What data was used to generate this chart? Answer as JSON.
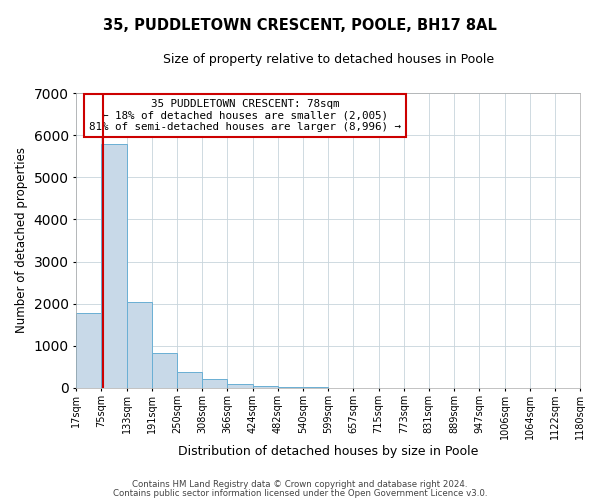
{
  "title": "35, PUDDLETOWN CRESCENT, POOLE, BH17 8AL",
  "subtitle": "Size of property relative to detached houses in Poole",
  "xlabel": "Distribution of detached houses by size in Poole",
  "ylabel": "Number of detached properties",
  "bar_values": [
    1780,
    5780,
    2050,
    820,
    370,
    220,
    100,
    55,
    30,
    10,
    5,
    0,
    0,
    0,
    0,
    0,
    0,
    0,
    0,
    0
  ],
  "bin_edges": [
    17,
    75,
    133,
    191,
    250,
    308,
    366,
    424,
    482,
    540,
    599,
    657,
    715,
    773,
    831,
    889,
    947,
    1006,
    1064,
    1122,
    1180
  ],
  "bar_labels": [
    "17sqm",
    "75sqm",
    "133sqm",
    "191sqm",
    "250sqm",
    "308sqm",
    "366sqm",
    "424sqm",
    "482sqm",
    "540sqm",
    "599sqm",
    "657sqm",
    "715sqm",
    "773sqm",
    "831sqm",
    "889sqm",
    "947sqm",
    "1006sqm",
    "1064sqm",
    "1122sqm",
    "1180sqm"
  ],
  "bar_color": "#c8d9e8",
  "bar_edge_color": "#6aafd4",
  "ylim": [
    0,
    7000
  ],
  "yticks": [
    0,
    1000,
    2000,
    3000,
    4000,
    5000,
    6000,
    7000
  ],
  "property_line_x": 78,
  "property_line_color": "#cc0000",
  "annotation_title": "35 PUDDLETOWN CRESCENT: 78sqm",
  "annotation_line1": "← 18% of detached houses are smaller (2,005)",
  "annotation_line2": "81% of semi-detached houses are larger (8,996) →",
  "annotation_box_color": "#cc0000",
  "footer1": "Contains HM Land Registry data © Crown copyright and database right 2024.",
  "footer2": "Contains public sector information licensed under the Open Government Licence v3.0.",
  "background_color": "#ffffff",
  "plot_background": "#ffffff",
  "grid_color": "#c8d4dc"
}
